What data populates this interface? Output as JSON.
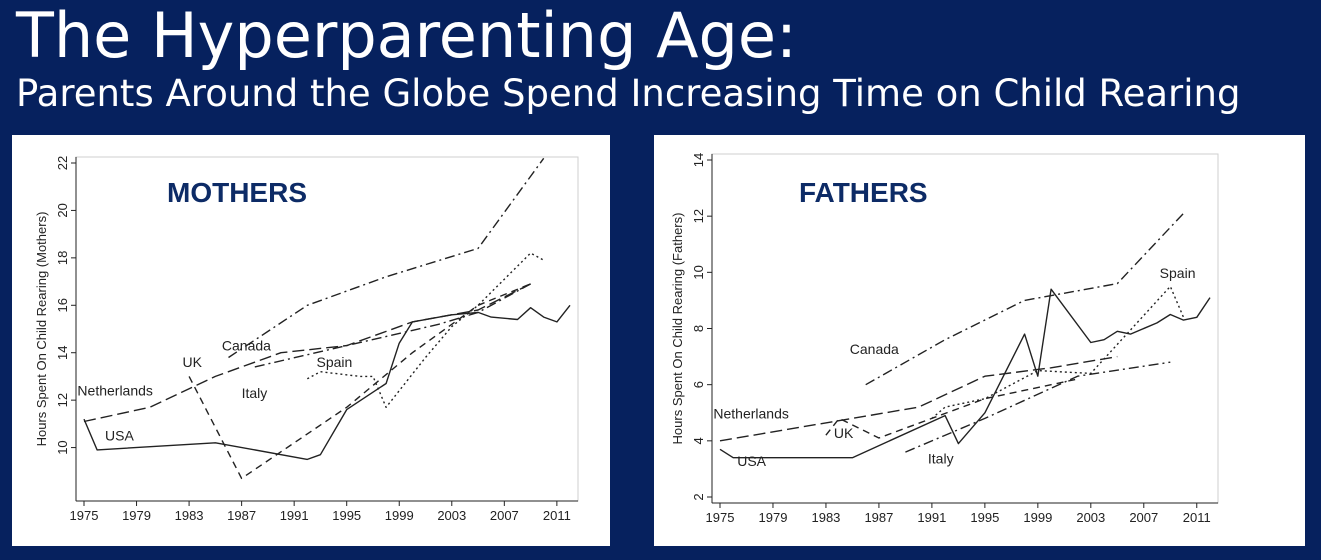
{
  "header": {
    "title": "The Hyperparenting Age:",
    "subtitle": "Parents Around the Globe Spend Increasing Time on Child Rearing"
  },
  "colors": {
    "background": "#06215e",
    "panel": "#ffffff",
    "heading": "#0d2b66",
    "series": "#222222"
  },
  "chart_data": [
    {
      "type": "line",
      "title": "MOTHERS",
      "ylabel": "Hours Spent On Child Rearing (Mothers)",
      "xlabel": "",
      "xlim": [
        1975,
        2012
      ],
      "ylim": [
        8,
        22
      ],
      "xticks": [
        1975,
        1979,
        1983,
        1987,
        1991,
        1995,
        1999,
        2003,
        2007,
        2011
      ],
      "yticks": [
        10,
        12,
        14,
        16,
        18,
        20,
        22
      ],
      "grid": false,
      "series": [
        {
          "name": "USA",
          "dash": "solid",
          "x": [
            1975,
            1976,
            1985,
            1992,
            1993,
            1995,
            1998,
            1999,
            2000,
            2003,
            2005,
            2006,
            2008,
            2009,
            2010,
            2011,
            2012
          ],
          "y": [
            11.2,
            9.9,
            10.2,
            9.5,
            9.7,
            11.6,
            12.7,
            14.4,
            15.3,
            15.6,
            15.7,
            15.5,
            15.4,
            15.9,
            15.5,
            15.3,
            16.0
          ]
        },
        {
          "name": "Netherlands",
          "dash": "longdash",
          "x": [
            1975,
            1980,
            1985,
            1990,
            1995,
            2000,
            2005,
            2009
          ],
          "y": [
            11.1,
            11.7,
            13.0,
            14.0,
            14.3,
            15.3,
            15.8,
            16.9
          ]
        },
        {
          "name": "Canada",
          "dash": "dashdot",
          "x": [
            1986,
            1992,
            1998,
            2005,
            2010
          ],
          "y": [
            13.8,
            16.0,
            17.2,
            18.4,
            22.2
          ]
        },
        {
          "name": "UK",
          "dash": "dash",
          "x": [
            1983,
            1987,
            1995,
            2000,
            2005,
            2009
          ],
          "y": [
            13.0,
            8.7,
            11.7,
            14.0,
            16.0,
            16.9
          ]
        },
        {
          "name": "Italy",
          "dash": "dashdot",
          "x": [
            1988,
            2002,
            2005,
            2009
          ],
          "y": [
            13.4,
            15.2,
            15.7,
            16.9
          ]
        },
        {
          "name": "Spain",
          "dash": "dot",
          "x": [
            1992,
            1993,
            1996,
            1997,
            1998,
            2001,
            2003,
            2005,
            2009,
            2010
          ],
          "y": [
            12.9,
            13.2,
            13.0,
            13.0,
            11.7,
            13.8,
            15.1,
            16.0,
            18.2,
            17.9
          ]
        }
      ],
      "labels": [
        {
          "text": "Netherlands",
          "x": 1974.5,
          "y": 12.2
        },
        {
          "text": "USA",
          "x": 1976.6,
          "y": 10.3
        },
        {
          "text": "Canada",
          "x": 1985.5,
          "y": 14.1
        },
        {
          "text": "UK",
          "x": 1982.5,
          "y": 13.4
        },
        {
          "text": "Italy",
          "x": 1987.0,
          "y": 12.1
        },
        {
          "text": "Spain",
          "x": 1992.7,
          "y": 13.4
        }
      ]
    },
    {
      "type": "line",
      "title": "FATHERS",
      "ylabel": "Hours Spent On Child Rearing (Fathers)",
      "xlabel": "",
      "xlim": [
        1975,
        2012
      ],
      "ylim": [
        2,
        14
      ],
      "xticks": [
        1975,
        1979,
        1983,
        1987,
        1991,
        1995,
        1999,
        2003,
        2007,
        2011
      ],
      "yticks": [
        2,
        4,
        6,
        8,
        10,
        12,
        14
      ],
      "grid": false,
      "series": [
        {
          "name": "USA",
          "dash": "solid",
          "x": [
            1975,
            1976,
            1985,
            1992,
            1993,
            1995,
            1998,
            1999,
            2000,
            2003,
            2004,
            2005,
            2006,
            2008,
            2009,
            2010,
            2011,
            2012
          ],
          "y": [
            3.7,
            3.4,
            3.4,
            4.9,
            3.9,
            5.0,
            7.8,
            6.3,
            9.4,
            7.5,
            7.6,
            7.9,
            7.8,
            8.2,
            8.5,
            8.3,
            8.4,
            9.1
          ]
        },
        {
          "name": "Netherlands",
          "dash": "longdash",
          "x": [
            1975,
            1980,
            1985,
            1990,
            1995,
            2000,
            2005
          ],
          "y": [
            4.0,
            4.4,
            4.8,
            5.2,
            6.3,
            6.6,
            7.0
          ]
        },
        {
          "name": "Canada",
          "dash": "dashdot",
          "x": [
            1986,
            1992,
            1998,
            2005,
            2010
          ],
          "y": [
            6.0,
            7.6,
            9.0,
            9.6,
            12.1
          ]
        },
        {
          "name": "UK",
          "dash": "dash",
          "x": [
            1983,
            1984,
            1987,
            1995,
            2000,
            2002
          ],
          "y": [
            4.2,
            4.8,
            4.1,
            5.5,
            6.0,
            6.2
          ]
        },
        {
          "name": "Italy",
          "dash": "dashdot",
          "x": [
            1989,
            1995,
            2002,
            2009
          ],
          "y": [
            3.6,
            4.8,
            6.3,
            6.8
          ]
        },
        {
          "name": "Spain",
          "dash": "dot",
          "x": [
            1991,
            1992,
            1995,
            1999,
            2003,
            2009,
            2010
          ],
          "y": [
            4.8,
            5.2,
            5.5,
            6.5,
            6.4,
            9.5,
            8.4
          ]
        }
      ],
      "labels": [
        {
          "text": "Netherlands",
          "x": 1974.5,
          "y": 4.8
        },
        {
          "text": "USA",
          "x": 1976.3,
          "y": 3.1
        },
        {
          "text": "Canada",
          "x": 1984.8,
          "y": 7.1
        },
        {
          "text": "UK",
          "x": 1983.6,
          "y": 4.1
        },
        {
          "text": "Italy",
          "x": 1990.7,
          "y": 3.2
        },
        {
          "text": "Spain",
          "x": 2008.2,
          "y": 9.8
        }
      ]
    }
  ]
}
